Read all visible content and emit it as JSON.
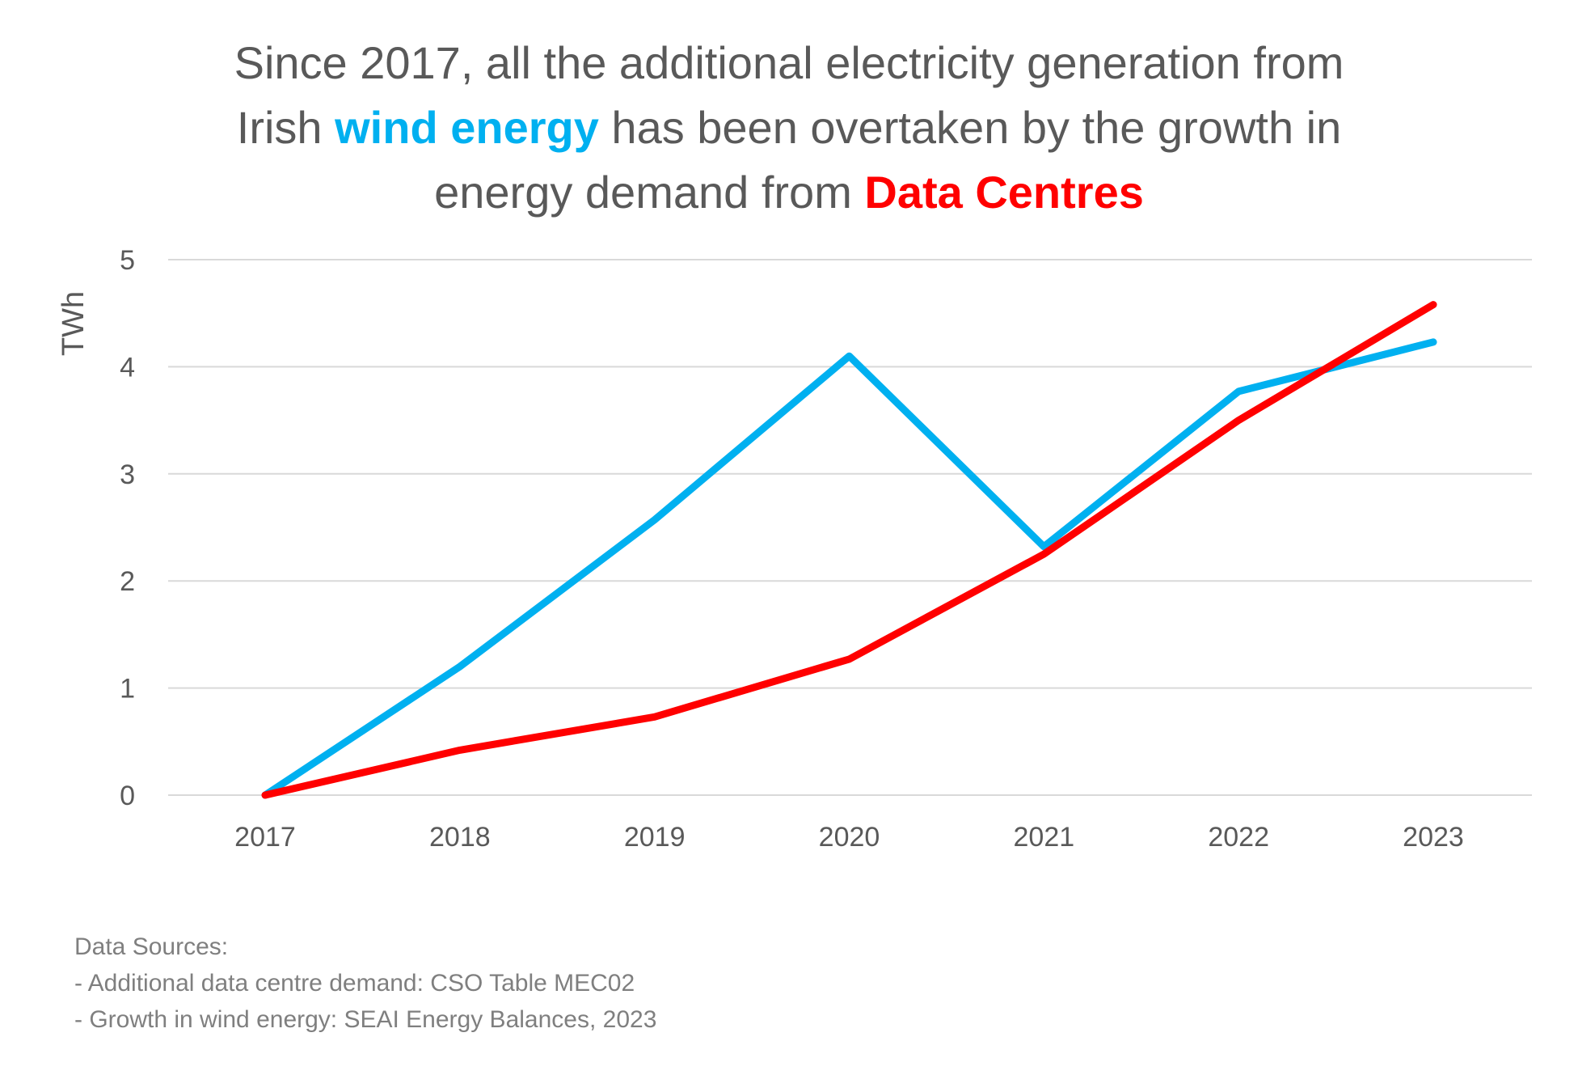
{
  "title": {
    "line1": "Since 2017, all the additional electricity generation from",
    "line2_pre": "Irish ",
    "line2_highlight": "wind energy",
    "line2_post": " has been overtaken by the growth in",
    "line3_pre": "energy demand from ",
    "line3_highlight": "Data Centres"
  },
  "sources": {
    "heading": "Data Sources:",
    "items": [
      "- Additional data centre demand: CSO Table MEC02",
      "- Growth in wind energy: SEAI Energy Balances, 2023"
    ]
  },
  "colors": {
    "wind": "#00b0f0",
    "data_centres": "#ff0000",
    "text": "#595959",
    "grid": "#d9d9d9"
  },
  "chart_data": {
    "type": "line",
    "title": "Since 2017, all the additional electricity generation from Irish wind energy has been overtaken by the growth in energy demand from Data Centres",
    "xlabel": "",
    "ylabel": "TWh",
    "x": [
      "2017",
      "2018",
      "2019",
      "2020",
      "2021",
      "2022",
      "2023"
    ],
    "ylim": [
      0,
      5
    ],
    "yticks": [
      0,
      1,
      2,
      3,
      4,
      5
    ],
    "grid": true,
    "legend": "none",
    "series": [
      {
        "color": "#00b0f0",
        "values": [
          0,
          1.2,
          2.57,
          4.1,
          2.32,
          3.77,
          4.23
        ]
      },
      {
        "color": "#ff0000",
        "values": [
          0,
          0.42,
          0.73,
          1.27,
          2.25,
          3.5,
          4.58
        ]
      }
    ]
  }
}
